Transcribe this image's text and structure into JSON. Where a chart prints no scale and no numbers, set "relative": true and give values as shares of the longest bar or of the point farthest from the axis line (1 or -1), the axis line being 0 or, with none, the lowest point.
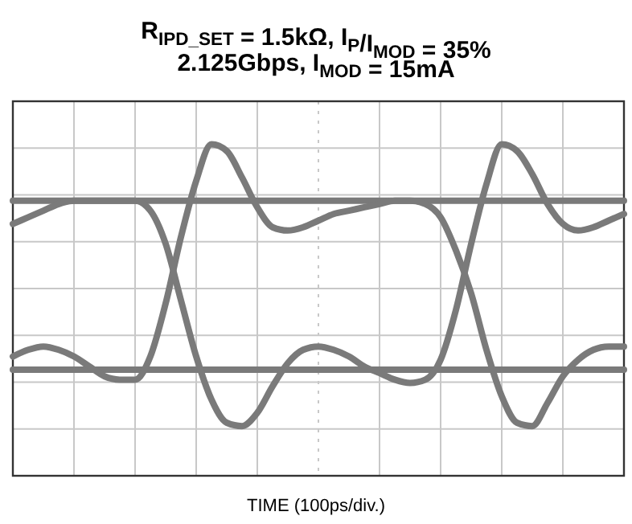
{
  "chart_data": {
    "type": "line",
    "relative": true,
    "title": "R$_{IPD_SET}$ = 1.5kΩ, I$_{P}$/I$_{MOD}$ = 35%",
    "subtitle": "2.125Gbps, I$_{MOD}$ = 15mA",
    "xlabel": "TIME (100ps/div.)",
    "grid": true,
    "legend": false,
    "line_style": "solid",
    "marker": "none",
    "categories": [
      null,
      null,
      null,
      null,
      null,
      null,
      null,
      null,
      null,
      null,
      null,
      null,
      null,
      null,
      null,
      null,
      null,
      null,
      null,
      null,
      null,
      null,
      null,
      null,
      null,
      null,
      null,
      null,
      null,
      null,
      null,
      null,
      null,
      null,
      null,
      null,
      null,
      null,
      null,
      null,
      null
    ],
    "series": [
      {
        "color": "#7a7a7a",
        "values": [
          0.83,
          0.83,
          0.83,
          0.83,
          0.83,
          0.83,
          0.83,
          0.83,
          0.83,
          0.83,
          0.83,
          0.83,
          0.83,
          0.83,
          0.83,
          0.83,
          0.83,
          0.83,
          0.83,
          0.83,
          0.83,
          0.83,
          0.83,
          0.83,
          0.83,
          0.83,
          0.83,
          0.83,
          0.83,
          0.83,
          0.83,
          0.83,
          0.83,
          0.83,
          0.83,
          0.83,
          0.83,
          0.83,
          0.83,
          0.83,
          0.83
        ]
      },
      {
        "color": "#7a7a7a",
        "values": [
          0.32,
          0.32,
          0.32,
          0.32,
          0.32,
          0.32,
          0.32,
          0.32,
          0.32,
          0.32,
          0.32,
          0.32,
          0.32,
          0.32,
          0.32,
          0.32,
          0.32,
          0.32,
          0.32,
          0.32,
          0.32,
          0.32,
          0.32,
          0.32,
          0.32,
          0.32,
          0.32,
          0.32,
          0.32,
          0.32,
          0.32,
          0.32,
          0.32,
          0.32,
          0.32,
          0.32,
          0.32,
          0.32,
          0.32,
          0.32,
          0.32
        ]
      },
      {
        "color": "#7a7a7a",
        "values": [
          0.36,
          0.38,
          0.39,
          0.38,
          0.36,
          0.33,
          0.3,
          0.29,
          0.29,
          0.36,
          0.52,
          0.72,
          0.89,
          1,
          0.98,
          0.9,
          0.81,
          0.75,
          0.74,
          0.75,
          0.77,
          0.79,
          0.8,
          0.81,
          0.82,
          0.83,
          0.83,
          0.82,
          0.78,
          0.68,
          0.55,
          0.38,
          0.24,
          0.16,
          0.15,
          0.22,
          0.3,
          0.35,
          0.38,
          0.39,
          0.39
        ]
      },
      {
        "color": "#7a7a7a",
        "values": [
          0.76,
          0.78,
          0.8,
          0.82,
          0.83,
          0.83,
          0.83,
          0.83,
          0.83,
          0.8,
          0.7,
          0.53,
          0.36,
          0.23,
          0.16,
          0.15,
          0.19,
          0.27,
          0.34,
          0.38,
          0.39,
          0.38,
          0.36,
          0.33,
          0.31,
          0.29,
          0.28,
          0.29,
          0.35,
          0.5,
          0.7,
          0.88,
          1,
          0.98,
          0.91,
          0.82,
          0.76,
          0.74,
          0.75,
          0.77,
          0.79
        ]
      }
    ]
  }
}
